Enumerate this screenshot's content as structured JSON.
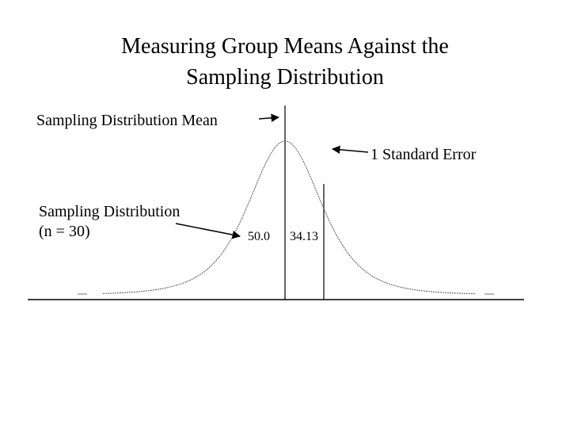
{
  "title": [
    "Measuring Group Means Against the",
    "Sampling Distribution"
  ],
  "labels": {
    "mean": "Sampling Distribution Mean",
    "standard_error": "1 Standard Error",
    "distribution": [
      "Sampling Distribution",
      "(n = 30)"
    ],
    "left_area": "50.0",
    "right_area": "34.13"
  }
}
